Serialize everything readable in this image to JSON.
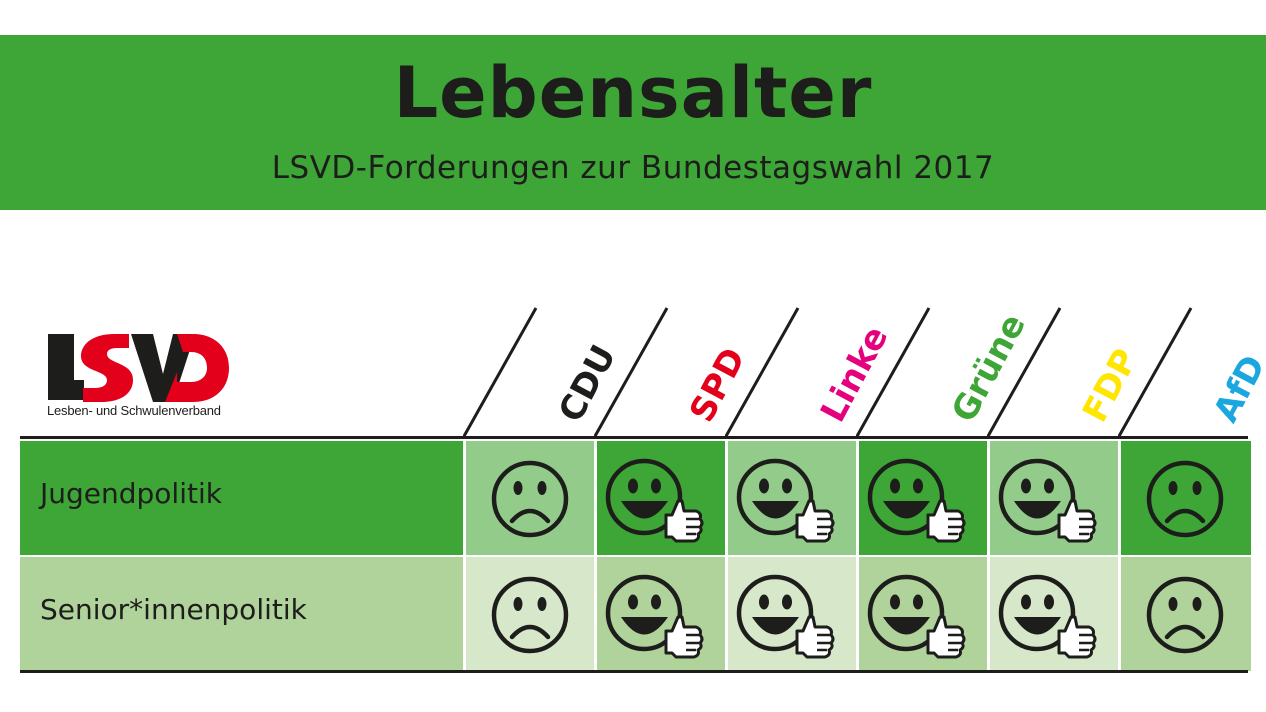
{
  "header": {
    "title": "Lebensalter",
    "subtitle": "LSVD-Forderungen zur Bundestagswahl 2017",
    "background_color": "#3da636"
  },
  "logo": {
    "letters": "LSVD",
    "text": "Lesben- und Schwulenverband"
  },
  "parties": [
    {
      "name": "CDU",
      "color": "#1d1d1b"
    },
    {
      "name": "SPD",
      "color": "#e2001a"
    },
    {
      "name": "Linke",
      "color": "#e5007d"
    },
    {
      "name": "Grüne",
      "color": "#3da636"
    },
    {
      "name": "FDP",
      "color": "#ffe500"
    },
    {
      "name": "AfD",
      "color": "#1aa7e0"
    }
  ],
  "rows": [
    {
      "label": "Jugendpolitik",
      "ratings": [
        "sad",
        "happy-thumbs-up",
        "happy-thumbs-up",
        "happy-thumbs-up",
        "happy-thumbs-up",
        "sad"
      ]
    },
    {
      "label": "Senior*innenpolitik",
      "ratings": [
        "sad",
        "happy-thumbs-up",
        "happy-thumbs-up",
        "happy-thumbs-up",
        "happy-thumbs-up",
        "sad"
      ]
    }
  ],
  "colors": {
    "row1_dark": "#3da636",
    "row1_light": "#93cc8a",
    "row2_dark": "#b0d29b",
    "row2_light": "#d6e8c9"
  }
}
